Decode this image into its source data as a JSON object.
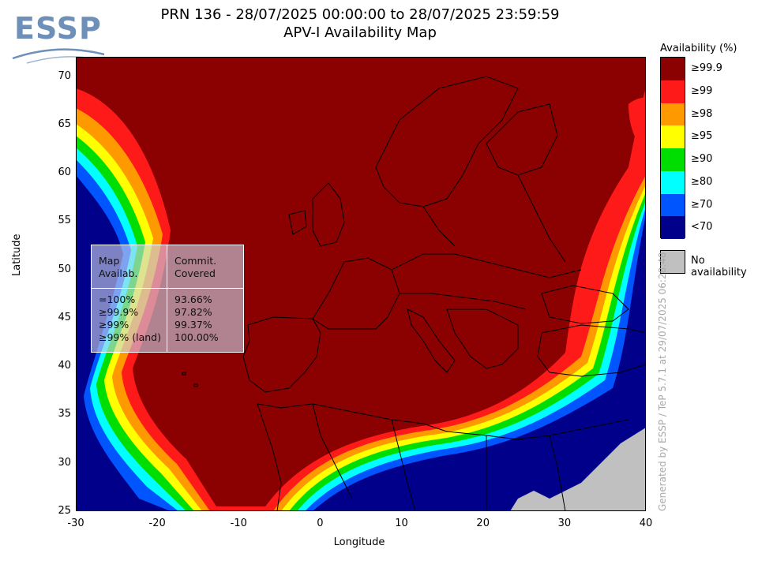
{
  "logo": {
    "text": "ESSP",
    "color": "#6d8fb8"
  },
  "title": {
    "line1": "PRN 136 - 28/07/2025 00:00:00 to 28/07/2025 23:59:59",
    "line2": "APV-I Availability Map"
  },
  "axes": {
    "xlabel": "Longitude",
    "ylabel": "Latitude",
    "xlim": [
      -30,
      40
    ],
    "ylim": [
      25,
      72
    ],
    "xticks": [
      "-30",
      "-20",
      "-10",
      "0",
      "10",
      "20",
      "30",
      "40"
    ],
    "yticks": [
      "70",
      "65",
      "60",
      "55",
      "50",
      "45",
      "40",
      "35",
      "30",
      "25"
    ]
  },
  "legend": {
    "title": "Availability (%)",
    "items": [
      {
        "label": "≥99.9",
        "color": "#8b0000"
      },
      {
        "label": "≥99",
        "color": "#ff1a1a"
      },
      {
        "label": "≥98",
        "color": "#ff9900"
      },
      {
        "label": "≥95",
        "color": "#ffff00"
      },
      {
        "label": "≥90",
        "color": "#00dd00"
      },
      {
        "label": "≥80",
        "color": "#00ffff"
      },
      {
        "label": "≥70",
        "color": "#0055ff"
      },
      {
        "label": "<70",
        "color": "#00008b"
      }
    ],
    "no_availability": {
      "label": "No availability",
      "color": "#c0c0c0"
    }
  },
  "stats": {
    "col1_header": "Map\nAvailab.",
    "col2_header": "Commit.\nCovered",
    "rows": [
      {
        "level": "=100%",
        "value": "93.66%"
      },
      {
        "level": "≥99.9%",
        "value": "97.82%"
      },
      {
        "level": "≥99%",
        "value": "99.37%"
      },
      {
        "level": "≥99% (land)",
        "value": "100.00%"
      }
    ]
  },
  "credit": "Generated by ESSP / TeP 5.7.1 at 29/07/2025 06:28:48"
}
